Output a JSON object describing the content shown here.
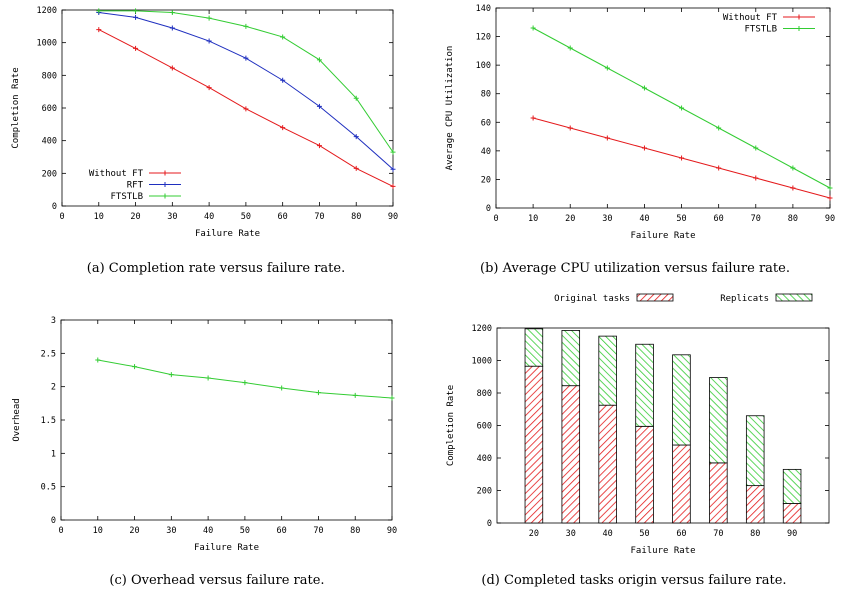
{
  "colors": {
    "red": "#e41a1c",
    "blue": "#1f2fbf",
    "green": "#33cc33",
    "axis": "#000000"
  },
  "chart_data": [
    {
      "id": "a",
      "type": "line",
      "caption": "(a) Completion rate versus failure rate.",
      "xlabel": "Failure Rate",
      "ylabel": "Completion Rate",
      "xlim": [
        0,
        90
      ],
      "ylim": [
        0,
        1200
      ],
      "xticks": [
        0,
        10,
        20,
        30,
        40,
        50,
        60,
        70,
        80,
        90
      ],
      "yticks": [
        0,
        200,
        400,
        600,
        800,
        1000,
        1200
      ],
      "legend_position": "bottom-left",
      "grid": false,
      "x": [
        10,
        20,
        30,
        40,
        50,
        60,
        70,
        80,
        90
      ],
      "series": [
        {
          "name": "Without FT",
          "color": "red",
          "values": [
            1080,
            965,
            845,
            725,
            595,
            480,
            370,
            230,
            120
          ]
        },
        {
          "name": "RFT",
          "color": "blue",
          "values": [
            1185,
            1155,
            1090,
            1010,
            905,
            770,
            610,
            425,
            225
          ]
        },
        {
          "name": "FTSTLB",
          "color": "green",
          "values": [
            1195,
            1195,
            1185,
            1150,
            1100,
            1035,
            895,
            660,
            330
          ]
        }
      ]
    },
    {
      "id": "b",
      "type": "line",
      "caption": "(b) Average CPU utilization versus failure rate.",
      "xlabel": "Failure Rate",
      "ylabel": "Average CPU Utilization",
      "xlim": [
        0,
        90
      ],
      "ylim": [
        0,
        140
      ],
      "xticks": [
        0,
        10,
        20,
        30,
        40,
        50,
        60,
        70,
        80,
        90
      ],
      "yticks": [
        0,
        20,
        40,
        60,
        80,
        100,
        120,
        140
      ],
      "legend_position": "top-right",
      "grid": false,
      "x": [
        10,
        20,
        30,
        40,
        50,
        60,
        70,
        80,
        90
      ],
      "series": [
        {
          "name": "Without FT",
          "color": "red",
          "values": [
            63,
            56,
            49,
            42,
            35,
            28,
            21,
            14,
            7
          ]
        },
        {
          "name": "FTSTLB",
          "color": "green",
          "values": [
            126,
            112,
            98,
            84,
            70,
            56,
            42,
            28,
            14
          ]
        }
      ]
    },
    {
      "id": "c",
      "type": "line",
      "caption": "(c) Overhead versus failure rate.",
      "xlabel": "Failure Rate",
      "ylabel": "Overhead",
      "xlim": [
        0,
        90
      ],
      "ylim": [
        0,
        3
      ],
      "xticks": [
        0,
        10,
        20,
        30,
        40,
        50,
        60,
        70,
        80,
        90
      ],
      "yticks": [
        0,
        0.5,
        1,
        1.5,
        2,
        2.5,
        3
      ],
      "grid": false,
      "x": [
        10,
        20,
        30,
        40,
        50,
        60,
        70,
        80,
        90
      ],
      "series": [
        {
          "color": "green",
          "values": [
            2.4,
            2.3,
            2.18,
            2.13,
            2.06,
            1.98,
            1.91,
            1.87,
            1.83
          ]
        }
      ]
    },
    {
      "id": "d",
      "type": "bar",
      "stacked": true,
      "caption": "(d) Completed tasks origin versus failure rate.",
      "xlabel": "Failure Rate",
      "ylabel": "Completion Rate",
      "ylim": [
        0,
        1200
      ],
      "yticks": [
        0,
        200,
        400,
        600,
        800,
        1000,
        1200
      ],
      "legend_position": "top-outside",
      "grid": false,
      "categories": [
        "20",
        "30",
        "40",
        "50",
        "60",
        "70",
        "80",
        "90"
      ],
      "series": [
        {
          "name": "Original tasks",
          "color": "red",
          "values": [
            965,
            845,
            725,
            595,
            480,
            370,
            230,
            120
          ]
        },
        {
          "name": "Replicats",
          "color": "green",
          "values": [
            230,
            340,
            425,
            505,
            555,
            525,
            430,
            210
          ]
        }
      ]
    }
  ]
}
